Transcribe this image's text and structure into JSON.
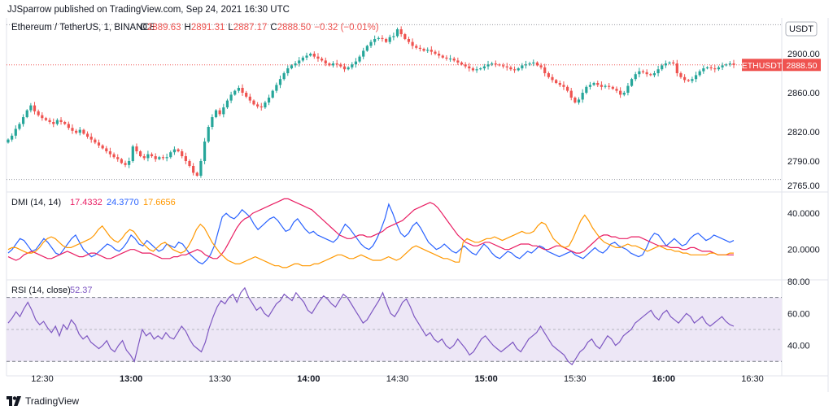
{
  "header": {
    "published_text": "JJSparrow published on TradingView.com, Sep 24, 2021 16:30 UTC"
  },
  "footer": {
    "brand": "TradingView"
  },
  "colors": {
    "up": "#26a69a",
    "down": "#ef5350",
    "blue": "#2962ff",
    "pink": "#e91e63",
    "orange": "#ff9800",
    "purple": "#7e57c2",
    "rsi_band": "#ede7f6"
  },
  "price_pane": {
    "title": "Ethereum / TetherUS, 1, BINANCE",
    "ohlc": [
      {
        "k": "O",
        "v": "2889.63"
      },
      {
        "k": "H",
        "v": "2891.31"
      },
      {
        "k": "L",
        "v": "2887.17"
      },
      {
        "k": "C",
        "v": "2888.50"
      },
      {
        "k": "",
        "v": "−0.32 (−0.01%)"
      }
    ],
    "currency_badge": "USDT",
    "symbol_tag": "ETHUSDT",
    "last_price": "2888.50",
    "y_ticks": [
      "2900.00",
      "2860.00",
      "2820.00",
      "2790.00",
      "2765.00"
    ]
  },
  "dmi_pane": {
    "title": "DMI (14, 14)",
    "values": [
      "17.4332",
      "24.3770",
      "17.6656"
    ],
    "y_ticks": [
      "40.0000",
      "20.0000"
    ]
  },
  "rsi_pane": {
    "title": "RSI (14, close)",
    "value": "52.37",
    "y_ticks": [
      "80.00",
      "60.00",
      "40.00"
    ],
    "bands": [
      70,
      30
    ]
  },
  "time_axis": [
    "12:30",
    "13:00",
    "13:30",
    "14:00",
    "14:30",
    "15:00",
    "15:30",
    "16:00",
    "16:30"
  ],
  "chart_data": [
    {
      "type": "candlestick",
      "title": "Ethereum / TetherUS, 1, BINANCE",
      "ylim": [
        2760,
        2935
      ],
      "last_price": 2888.5,
      "series": [
        {
          "name": "ETHUSDT",
          "close": [
            2812,
            2816,
            2823,
            2828,
            2835,
            2842,
            2847,
            2841,
            2837,
            2834,
            2832,
            2830,
            2828,
            2832,
            2830,
            2828,
            2824,
            2821,
            2819,
            2822,
            2818,
            2815,
            2812,
            2809,
            2806,
            2803,
            2800,
            2797,
            2794,
            2792,
            2788,
            2786,
            2790,
            2805,
            2800,
            2795,
            2793,
            2797,
            2795,
            2792,
            2794,
            2793,
            2794,
            2799,
            2802,
            2800,
            2795,
            2790,
            2785,
            2778,
            2775,
            2790,
            2810,
            2825,
            2835,
            2842,
            2838,
            2845,
            2852,
            2858,
            2862,
            2865,
            2860,
            2856,
            2852,
            2848,
            2846,
            2845,
            2850,
            2855,
            2862,
            2868,
            2874,
            2880,
            2885,
            2888,
            2890,
            2893,
            2896,
            2898,
            2900,
            2897,
            2895,
            2893,
            2890,
            2888,
            2890,
            2889,
            2887,
            2884,
            2886,
            2889,
            2892,
            2897,
            2903,
            2908,
            2912,
            2915,
            2916,
            2915,
            2912,
            2917,
            2918,
            2925,
            2920,
            2915,
            2912,
            2908,
            2906,
            2905,
            2903,
            2904,
            2902,
            2900,
            2898,
            2896,
            2895,
            2895,
            2893,
            2891,
            2889,
            2887,
            2885,
            2883,
            2884,
            2885,
            2887,
            2889,
            2890,
            2889,
            2888,
            2887,
            2886,
            2884,
            2883,
            2885,
            2888,
            2889,
            2890,
            2891,
            2888,
            2886,
            2880,
            2876,
            2873,
            2870,
            2868,
            2866,
            2862,
            2855,
            2850,
            2853,
            2860,
            2866,
            2868,
            2870,
            2868,
            2866,
            2867,
            2866,
            2864,
            2862,
            2858,
            2860,
            2867,
            2874,
            2879,
            2882,
            2881,
            2879,
            2878,
            2880,
            2884,
            2888,
            2890,
            2891,
            2890,
            2880,
            2876,
            2873,
            2872,
            2874,
            2878,
            2882,
            2885,
            2886,
            2885,
            2884,
            2886,
            2888,
            2889,
            2890,
            2888.5
          ]
        }
      ]
    },
    {
      "type": "line",
      "title": "DMI (14, 14)",
      "ylim": [
        5,
        50
      ],
      "series": [
        {
          "name": "+DI",
          "color": "#2962ff",
          "values": [
            18,
            20,
            23,
            26,
            25,
            22,
            19,
            20,
            23,
            26,
            24,
            21,
            18,
            17,
            20,
            23,
            26,
            28,
            24,
            20,
            18,
            16,
            17,
            19,
            21,
            23,
            22,
            20,
            19,
            21,
            24,
            28,
            26,
            23,
            22,
            25,
            23,
            21,
            19,
            20,
            23,
            22,
            21,
            24,
            23,
            20,
            17,
            15,
            13,
            12,
            14,
            17,
            22,
            30,
            38,
            40,
            38,
            37,
            39,
            42,
            40,
            38,
            34,
            31,
            33,
            35,
            37,
            38,
            36,
            33,
            30,
            31,
            35,
            37,
            34,
            31,
            29,
            30,
            28,
            27,
            26,
            25,
            24,
            26,
            30,
            34,
            32,
            29,
            26,
            23,
            21,
            20,
            22,
            26,
            31,
            37,
            45,
            40,
            34,
            29,
            27,
            29,
            33,
            35,
            32,
            28,
            24,
            22,
            20,
            21,
            23,
            21,
            19,
            18,
            20,
            22,
            20,
            18,
            17,
            20,
            23,
            21,
            18,
            16,
            15,
            17,
            19,
            18,
            16,
            15,
            17,
            19,
            18,
            20,
            22,
            21,
            19,
            18,
            17,
            16,
            17,
            18,
            19,
            17,
            16,
            15,
            17,
            19,
            21,
            19,
            18,
            20,
            23,
            24,
            22,
            21,
            20,
            18,
            17,
            16,
            17,
            21,
            26,
            29,
            28,
            25,
            22,
            24,
            26,
            24,
            22,
            23,
            26,
            28,
            29,
            27,
            25,
            26,
            28,
            27,
            26,
            25,
            24,
            25
          ]
        },
        {
          "name": "−DI",
          "color": "#e91e63",
          "values": [
            16,
            15,
            14,
            15,
            17,
            18,
            19,
            18,
            17,
            16,
            15,
            15,
            16,
            17,
            18,
            19,
            18,
            17,
            16,
            16,
            17,
            18,
            18,
            17,
            16,
            15,
            15,
            16,
            17,
            18,
            19,
            20,
            20,
            19,
            18,
            18,
            18,
            17,
            16,
            15,
            15,
            15,
            16,
            16,
            17,
            17,
            18,
            19,
            20,
            19,
            17,
            16,
            15,
            15,
            17,
            20,
            24,
            28,
            32,
            35,
            37,
            38,
            40,
            41,
            42,
            43,
            44,
            45,
            46,
            47,
            48,
            48,
            47,
            46,
            45,
            44,
            43,
            42,
            40,
            38,
            36,
            34,
            32,
            30,
            28,
            27,
            26,
            26,
            27,
            28,
            28,
            27,
            27,
            28,
            29,
            30,
            32,
            33,
            34,
            35,
            36,
            38,
            40,
            42,
            43,
            44,
            45,
            46,
            45,
            43,
            40,
            37,
            34,
            31,
            28,
            26,
            24,
            23,
            22,
            22,
            23,
            24,
            24,
            23,
            22,
            21,
            20,
            20,
            21,
            22,
            23,
            23,
            23,
            22,
            22,
            21,
            20,
            20,
            21,
            22,
            22,
            21,
            20,
            19,
            18,
            18,
            19,
            21,
            23,
            25,
            27,
            28,
            28,
            27,
            27,
            26,
            26,
            26,
            27,
            27,
            27,
            26,
            25,
            24,
            23,
            22,
            22,
            22,
            21,
            21,
            21,
            20,
            20,
            21,
            21,
            20,
            19,
            19,
            19,
            18,
            17,
            17,
            17,
            17,
            17
          ]
        },
        {
          "name": "ADX",
          "color": "#ff9800",
          "values": [
            20,
            21,
            21,
            20,
            19,
            18,
            18,
            19,
            21,
            24,
            26,
            27,
            26,
            24,
            22,
            21,
            21,
            22,
            23,
            24,
            25,
            26,
            28,
            31,
            33,
            30,
            27,
            25,
            24,
            26,
            29,
            31,
            30,
            27,
            24,
            22,
            20,
            19,
            21,
            23,
            24,
            22,
            20,
            19,
            18,
            19,
            22,
            26,
            31,
            34,
            32,
            28,
            24,
            21,
            18,
            16,
            14,
            13,
            12,
            12,
            13,
            14,
            15,
            16,
            15,
            14,
            13,
            12,
            11,
            11,
            10,
            10,
            11,
            12,
            12,
            11,
            11,
            11,
            12,
            12,
            13,
            14,
            15,
            16,
            17,
            17,
            16,
            15,
            15,
            16,
            17,
            16,
            15,
            14,
            14,
            14,
            15,
            16,
            15,
            14,
            15,
            17,
            19,
            21,
            22,
            21,
            20,
            19,
            18,
            17,
            16,
            15,
            15,
            14,
            13,
            13,
            24,
            26,
            25,
            24,
            24,
            25,
            26,
            26,
            27,
            26,
            25,
            26,
            27,
            28,
            29,
            30,
            29,
            29,
            30,
            33,
            35,
            34,
            30,
            26,
            24,
            22,
            21,
            22,
            26,
            31,
            36,
            39,
            36,
            32,
            29,
            26,
            24,
            23,
            22,
            21,
            21,
            22,
            23,
            22,
            22,
            21,
            20,
            19,
            20,
            21,
            22,
            21,
            20,
            20,
            19,
            19,
            18,
            18,
            17,
            17,
            17,
            17,
            17,
            18,
            18,
            17,
            17,
            17,
            18,
            18
          ]
        }
      ]
    },
    {
      "type": "line",
      "title": "RSI (14, close)",
      "ylim": [
        22,
        80
      ],
      "series": [
        {
          "name": "RSI",
          "color": "#7e57c2",
          "values": [
            54,
            57,
            61,
            58,
            63,
            67,
            62,
            56,
            53,
            55,
            51,
            48,
            52,
            46,
            53,
            50,
            56,
            53,
            47,
            44,
            46,
            42,
            40,
            38,
            40,
            43,
            38,
            36,
            40,
            43,
            37,
            34,
            30,
            40,
            50,
            46,
            48,
            44,
            46,
            44,
            48,
            45,
            44,
            48,
            52,
            49,
            44,
            40,
            38,
            36,
            42,
            51,
            58,
            64,
            68,
            66,
            70,
            72,
            67,
            73,
            76,
            70,
            66,
            62,
            64,
            60,
            58,
            62,
            66,
            68,
            72,
            70,
            68,
            73,
            70,
            67,
            62,
            60,
            64,
            68,
            71,
            69,
            66,
            64,
            68,
            72,
            70,
            66,
            62,
            58,
            54,
            56,
            60,
            64,
            68,
            73,
            66,
            60,
            58,
            62,
            67,
            69,
            64,
            58,
            54,
            50,
            46,
            48,
            44,
            42,
            44,
            40,
            38,
            40,
            44,
            41,
            38,
            34,
            36,
            40,
            44,
            46,
            43,
            40,
            38,
            36,
            38,
            40,
            42,
            38,
            36,
            40,
            44,
            46,
            48,
            52,
            48,
            44,
            40,
            38,
            36,
            34,
            30,
            28,
            32,
            36,
            38,
            42,
            44,
            40,
            38,
            42,
            46,
            44,
            40,
            42,
            46,
            48,
            50,
            54,
            56,
            58,
            60,
            62,
            58,
            56,
            60,
            62,
            58,
            56,
            54,
            57,
            60,
            58,
            54,
            56,
            58,
            54,
            52,
            54,
            56,
            58,
            55,
            53,
            52
          ]
        }
      ]
    }
  ]
}
